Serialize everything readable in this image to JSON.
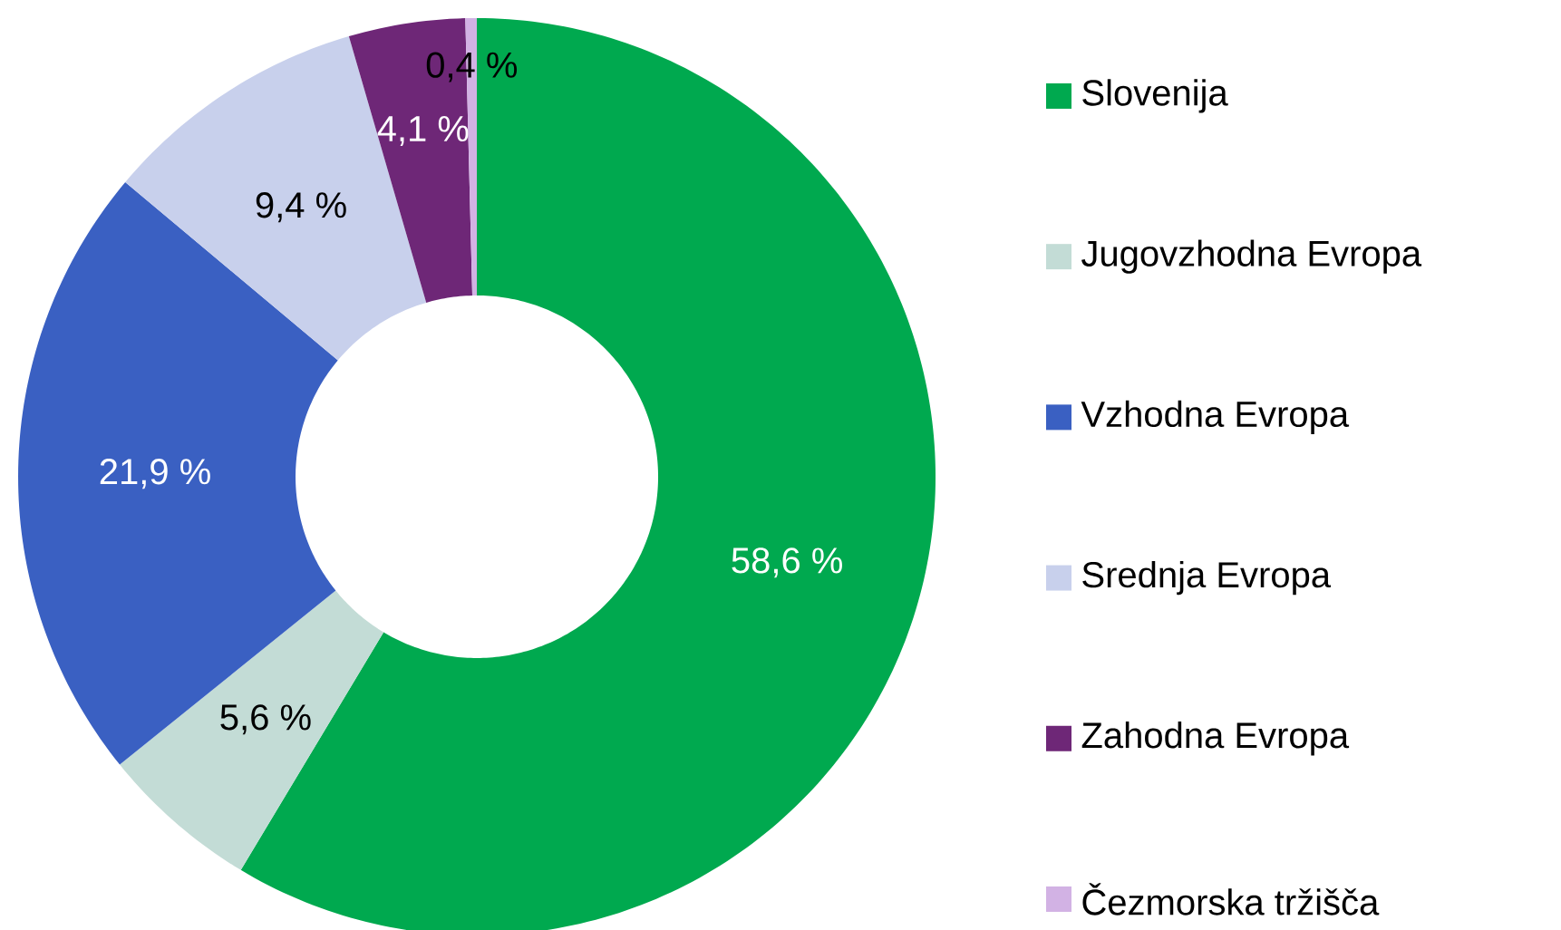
{
  "chart_data": {
    "type": "donut",
    "categories": [
      "Slovenija",
      "Jugovzhodna Evropa",
      "Vzhodna Evropa",
      "Srednja Evropa",
      "Zahodna Evropa",
      "Čezmorska tržišča"
    ],
    "values": [
      58.6,
      5.6,
      21.9,
      9.4,
      4.1,
      0.4
    ],
    "value_labels": [
      "58,6 %",
      "5,6 %",
      "21,9 %",
      "9,4 %",
      "4,1 %",
      "0,4 %"
    ],
    "colors": [
      "#00a94f",
      "#c3dcd6",
      "#3a60c2",
      "#c8d0ec",
      "#6e2777",
      "#d2b2e4"
    ],
    "legend": "right"
  }
}
